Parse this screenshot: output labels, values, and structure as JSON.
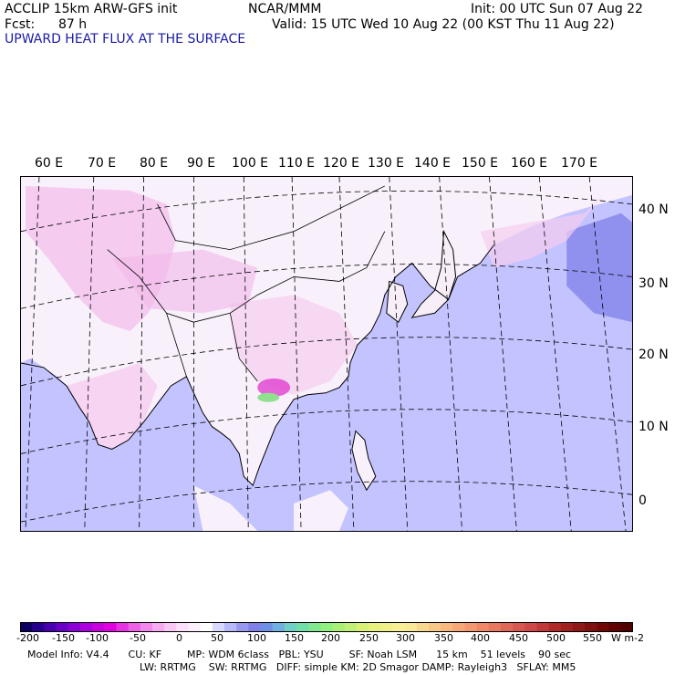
{
  "header": {
    "model_line": "ACCLIP 15km ARW-GFS init",
    "org": "NCAR/MMM",
    "init": "Init: 00 UTC Sun 07 Aug 22",
    "fcst_label": "Fcst:",
    "fcst_value": "87 h",
    "valid": "Valid: 15 UTC Wed 10 Aug 22 (00 KST Thu 11 Aug 22)",
    "field_title": "UPWARD HEAT FLUX AT THE SURFACE"
  },
  "map": {
    "lon_labels": [
      "60 E",
      "70 E",
      "80 E",
      "90 E",
      "100 E",
      "110 E",
      "120 E",
      "130 E",
      "140 E",
      "150 E",
      "160 E",
      "170 E"
    ],
    "lat_labels": [
      "40 N",
      "30 N",
      "20 N",
      "10 N",
      "0"
    ],
    "colors": {
      "ocean": "#c3c3ff",
      "land_light": "#f8f0fa",
      "land_pink": "#f4c0ec",
      "magenta": "#e040d0",
      "green": "#8fe08f",
      "blue_dark": "#9090ee",
      "coast": "#000000"
    }
  },
  "colorbar": {
    "ticks": [
      "-200",
      "-150",
      "-100",
      "-50",
      "0",
      "50",
      "100",
      "150",
      "200",
      "250",
      "300",
      "350",
      "400",
      "450",
      "500",
      "550"
    ],
    "units": "W m-2",
    "colors": [
      "#0c0060",
      "#280090",
      "#4800b0",
      "#6a00c8",
      "#8c00d8",
      "#ac00e0",
      "#c800e0",
      "#e000e0",
      "#e830e4",
      "#ee60e8",
      "#f288ec",
      "#f6aaf0",
      "#f8c8f4",
      "#fae0f8",
      "#fcf0fc",
      "#ffffff",
      "#d8d8ff",
      "#b8b8ff",
      "#9898f0",
      "#8080e8",
      "#7090e8",
      "#70b0e0",
      "#70d0c8",
      "#70e0a8",
      "#80e890",
      "#90f080",
      "#a8f078",
      "#c0f078",
      "#d8f078",
      "#e8f080",
      "#f0f088",
      "#f8f098",
      "#f8e898",
      "#f8d890",
      "#f8c888",
      "#f8b880",
      "#f8a878",
      "#f49870",
      "#f08868",
      "#e87860",
      "#e06858",
      "#d85850",
      "#d04848",
      "#c03838",
      "#b02828",
      "#a02020",
      "#901818",
      "#801010",
      "#700808",
      "#600000",
      "#500000"
    ]
  },
  "footer": {
    "line1": "Model Info: V4.4      CU: KF        MP: WDM 6class   PBL: YSU        SF: Noah LSM      15 km    51 levels    90 sec",
    "line2": "LW: RRTMG    SW: RRTMG   DIFF: simple KM: 2D Smagor DAMP: Rayleigh3   SFLAY: MM5"
  }
}
